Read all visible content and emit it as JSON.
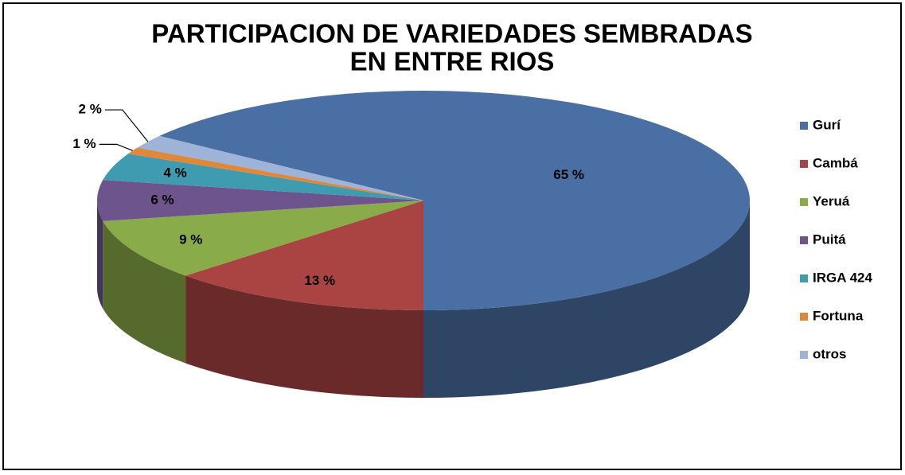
{
  "chart_data": {
    "type": "pie",
    "title": [
      "PARTICIPACION DE VARIEDADES SEMBRADAS",
      "EN ENTRE RIOS"
    ],
    "categories": [
      "Gurí",
      "Cambá",
      "Yeruá",
      "Puitá",
      "IRGA 424",
      "Fortuna",
      "otros"
    ],
    "values": [
      65,
      13,
      9,
      6,
      4,
      1,
      2
    ],
    "value_labels": [
      "65 %",
      "13 %",
      "9 %",
      "6 %",
      "4 %",
      "1 %",
      "2 %"
    ],
    "colors": [
      "#4a6fa5",
      "#a94442",
      "#8aab4a",
      "#6e548d",
      "#3f9bb0",
      "#e0883a",
      "#9db3d8"
    ],
    "legend": "right"
  }
}
